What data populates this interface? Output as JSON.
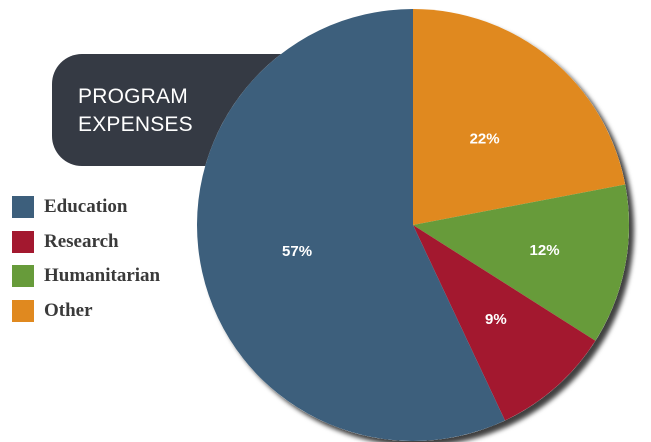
{
  "chart_data": {
    "type": "pie",
    "title": [
      "PROGRAM",
      "EXPENSES"
    ],
    "slices": [
      {
        "name": "Other",
        "value": 22,
        "label": "22%",
        "color": "#e0891f"
      },
      {
        "name": "Humanitarian",
        "value": 12,
        "label": "12%",
        "color": "#679b3a"
      },
      {
        "name": "Research",
        "value": 9,
        "label": "9%",
        "color": "#a3182f"
      },
      {
        "name": "Education",
        "value": 57,
        "label": "57%",
        "color": "#3d5f7c"
      }
    ],
    "legend_order": [
      "Education",
      "Research",
      "Humanitarian",
      "Other"
    ],
    "legend_placement": "left"
  },
  "colors": {
    "title_background": "#353a44",
    "title_text": "#ffffff",
    "legend_text": "#3a3a3a"
  }
}
